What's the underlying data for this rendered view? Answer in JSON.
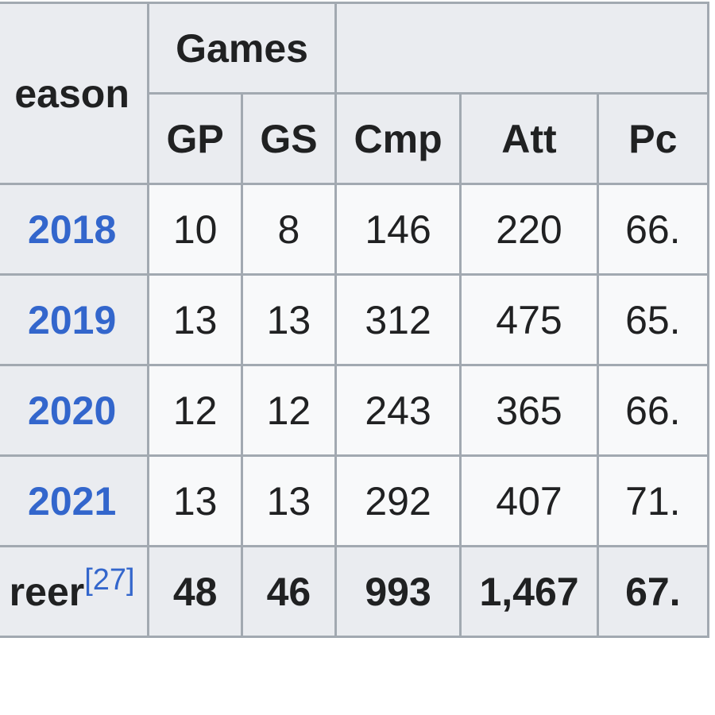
{
  "table": {
    "header_top": {
      "season": "eason",
      "games": "Games",
      "passing": ""
    },
    "header_sub": {
      "gp": "GP",
      "gs": "GS",
      "cmp": "Cmp",
      "att": "Att",
      "pct": "Pc"
    },
    "rows": [
      {
        "season": "2018",
        "gp": "10",
        "gs": "8",
        "cmp": "146",
        "att": "220",
        "pct": "66."
      },
      {
        "season": "2019",
        "gp": "13",
        "gs": "13",
        "cmp": "312",
        "att": "475",
        "pct": "65."
      },
      {
        "season": "2020",
        "gp": "12",
        "gs": "12",
        "cmp": "243",
        "att": "365",
        "pct": "66."
      },
      {
        "season": "2021",
        "gp": "13",
        "gs": "13",
        "cmp": "292",
        "att": "407",
        "pct": "71."
      }
    ],
    "career": {
      "label": "reer",
      "ref": "[27]",
      "gp": "48",
      "gs": "46",
      "cmp": "993",
      "att": "1,467",
      "pct": "67."
    }
  },
  "colors": {
    "header_bg": "#eaecf0",
    "cell_bg": "#f8f9fa",
    "border": "#a2a9b1",
    "link": "#3366cc",
    "text": "#202122"
  }
}
